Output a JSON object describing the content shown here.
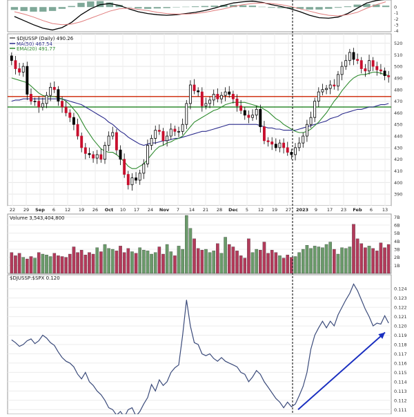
{
  "chart_data": [
    {
      "type": "line",
      "panel": "top-indicator",
      "ylim": [
        -4.2,
        1.2
      ],
      "y_ticks": [
        "0",
        "-1",
        "-2",
        "-3",
        "-4"
      ],
      "series": [
        {
          "color": "#000000",
          "y": [
            -1.6,
            -2.3,
            -3.0,
            -3.6,
            -3.9,
            -3.5,
            -2.6,
            -1.3,
            -0.3,
            0.4,
            0.6,
            0.3,
            -0.3,
            -0.8,
            -1.1,
            -1.3,
            -1.4,
            -1.3,
            -1.1,
            -0.9,
            -0.6,
            -0.2,
            0.3,
            0.7,
            0.9,
            1.0,
            0.8,
            0.4,
            0.1,
            -0.3,
            -0.8,
            -1.4,
            -1.8,
            -1.9,
            -1.7,
            -1.1,
            -0.2,
            0.7,
            1.1,
            1.3
          ]
        },
        {
          "color": "#e07b7b",
          "y": [
            -0.8,
            -1.2,
            -1.7,
            -2.3,
            -2.8,
            -3.0,
            -2.9,
            -2.5,
            -1.9,
            -1.3,
            -0.7,
            -0.3,
            -0.2,
            -0.4,
            -0.6,
            -0.9,
            -1.1,
            -1.2,
            -1.2,
            -1.1,
            -0.9,
            -0.6,
            -0.3,
            0.1,
            0.4,
            0.6,
            0.7,
            0.6,
            0.4,
            0.1,
            -0.3,
            -0.7,
            -1.1,
            -1.4,
            -1.5,
            -1.3,
            -0.9,
            -0.2,
            0.4,
            0.9
          ]
        }
      ]
    },
    {
      "type": "candlestick",
      "panel": "price",
      "legend": [
        "$DJUSSP (Daily) 490.26",
        "MA(50) 467.54",
        "EMA(20) 491.77"
      ],
      "ylim": [
        380,
        528
      ],
      "y_ticks": [
        "520",
        "510",
        "500",
        "490",
        "480",
        "470",
        "460",
        "450",
        "440",
        "430",
        "420",
        "410",
        "400",
        "390"
      ],
      "x_ticks": [
        "22",
        "29",
        "Sep",
        "6",
        "12",
        "19",
        "26",
        "Oct",
        "10",
        "17",
        "24",
        "Nov",
        "7",
        "14",
        "21",
        "28",
        "Dec",
        "5",
        "12",
        "19",
        "27",
        "2023",
        "9",
        "17",
        "23",
        "Feb",
        "6",
        "13"
      ],
      "hlines": [
        {
          "y": 474,
          "color": "#cc2200"
        },
        {
          "y": 465,
          "color": "#2e8b2e"
        }
      ],
      "close": [
        505,
        498,
        495,
        500,
        476,
        470,
        470,
        465,
        468,
        475,
        482,
        480,
        470,
        465,
        460,
        456,
        450,
        440,
        430,
        425,
        424,
        421,
        424,
        420,
        432,
        440,
        443,
        428,
        420,
        407,
        398,
        404,
        402,
        408,
        416,
        432,
        438,
        445,
        444,
        436,
        440,
        446,
        444,
        444,
        450,
        468,
        484,
        479,
        478,
        466,
        468,
        471,
        476,
        472,
        475,
        478,
        476,
        472,
        466,
        462,
        458,
        456,
        458,
        463,
        448,
        436,
        435,
        433,
        430,
        434,
        430,
        426,
        424,
        430,
        434,
        440,
        450,
        456,
        470,
        478,
        480,
        481,
        484,
        483,
        493,
        500,
        505,
        512,
        506,
        505,
        498,
        496,
        505,
        500,
        497,
        496,
        492,
        491
      ],
      "ma50": [
        470,
        471,
        471,
        472,
        472,
        472,
        472,
        472,
        472,
        472,
        472,
        472,
        472,
        472,
        471,
        470,
        469,
        468,
        467,
        465,
        463,
        461,
        459,
        457,
        455,
        452,
        450,
        447,
        444,
        442,
        439,
        437,
        435,
        433,
        432,
        433,
        434,
        434,
        435,
        436,
        436,
        437,
        438,
        438,
        439,
        440,
        441,
        442,
        443,
        444,
        444,
        445,
        446,
        447,
        448,
        449,
        450,
        450,
        450,
        450,
        450,
        450,
        450,
        450,
        449,
        448,
        447,
        447,
        446,
        446,
        445,
        445,
        445,
        445,
        446,
        447,
        448,
        449,
        450,
        451,
        452,
        453,
        455,
        456,
        457,
        459,
        460,
        461,
        462,
        463,
        463,
        464,
        465,
        465,
        466,
        467,
        467,
        468
      ],
      "ema20": [
        490,
        489,
        488,
        487,
        486,
        483,
        480,
        477,
        475,
        474,
        474,
        474,
        473,
        472,
        470,
        467,
        463,
        459,
        453,
        447,
        442,
        437,
        433,
        429,
        427,
        426,
        426,
        424,
        421,
        418,
        414,
        412,
        412,
        414,
        416,
        420,
        424,
        428,
        431,
        432,
        434,
        435,
        437,
        438,
        440,
        444,
        448,
        452,
        454,
        456,
        458,
        460,
        462,
        463,
        465,
        467,
        468,
        469,
        469,
        469,
        469,
        468,
        467,
        466,
        465,
        463,
        461,
        458,
        455,
        453,
        450,
        448,
        446,
        444,
        443,
        443,
        444,
        446,
        449,
        452,
        456,
        460,
        465,
        470,
        474,
        479,
        483,
        487,
        490,
        492,
        493,
        493,
        494,
        495,
        495,
        494,
        493,
        492
      ],
      "series": [
        {
          "name": "$DJUSSP (Daily) 490.26",
          "color": "#000000"
        },
        {
          "name": "MA(50) 467.54",
          "color": "#2b2b8c"
        },
        {
          "name": "EMA(20) 491.77",
          "color": "#2e8b2e"
        }
      ]
    },
    {
      "type": "bar",
      "panel": "volume",
      "legend": [
        "Volume 3,543,404,800"
      ],
      "ylim": [
        0,
        7.2
      ],
      "y_ticks": [
        "7B",
        "6B",
        "5B",
        "4B",
        "3B",
        "2B",
        "1B"
      ],
      "values": [
        2.6,
        2.2,
        2.5,
        2.0,
        1.8,
        2.1,
        1.9,
        2.6,
        2.4,
        2.3,
        2.1,
        2.5,
        2.2,
        2.1,
        2.0,
        2.4,
        3.3,
        2.6,
        2.9,
        2.3,
        2.6,
        2.4,
        3.2,
        2.7,
        3.6,
        3.1,
        3.0,
        2.8,
        3.4,
        2.6,
        3.1,
        2.7,
        2.5,
        3.2,
        2.9,
        2.8,
        2.4,
        2.6,
        3.3,
        2.4,
        3.6,
        2.7,
        2.2,
        3.4,
        3.0,
        7.2,
        5.6,
        4.3,
        3.1,
        2.9,
        3.0,
        2.6,
        2.8,
        3.7,
        2.5,
        4.5,
        3.6,
        3.3,
        2.8,
        2.2,
        1.9,
        4.3,
        2.6,
        3.0,
        2.9,
        3.9,
        2.5,
        2.9,
        2.6,
        2.2,
        1.9,
        2.3,
        2.0,
        2.1,
        2.6,
        3.0,
        3.5,
        3.1,
        3.4,
        3.3,
        3.2,
        3.6,
        3.9,
        3.0,
        2.4,
        3.2,
        3.1,
        3.3,
        6.1,
        4.3,
        3.7,
        3.2,
        3.4,
        3.1,
        2.8,
        3.8,
        3.2,
        3.6
      ]
    },
    {
      "type": "line",
      "panel": "ratio",
      "legend": [
        "$DJUSSP:$SPX 0.120"
      ],
      "ylim": [
        0.1105,
        0.1255
      ],
      "y_ticks": [
        "0.124",
        "0.123",
        "0.122",
        "0.121",
        "0.120",
        "0.119",
        "0.118",
        "0.117",
        "0.116",
        "0.115",
        "0.114",
        "0.113",
        "0.112",
        "0.111"
      ],
      "series": [
        {
          "name": "$DJUSSP:$SPX 0.120",
          "color": "#3a4a7a",
          "values": [
            0.1185,
            0.1182,
            0.1178,
            0.118,
            0.1184,
            0.1186,
            0.1181,
            0.1184,
            0.119,
            0.1187,
            0.1182,
            0.1179,
            0.1172,
            0.1166,
            0.1162,
            0.116,
            0.1156,
            0.1148,
            0.1143,
            0.115,
            0.114,
            0.1136,
            0.113,
            0.1126,
            0.112,
            0.1112,
            0.111,
            0.1104,
            0.1108,
            0.1102,
            0.111,
            0.1112,
            0.1103,
            0.1108,
            0.1116,
            0.1123,
            0.1137,
            0.113,
            0.1142,
            0.1136,
            0.114,
            0.115,
            0.1155,
            0.1158,
            0.119,
            0.1228,
            0.12,
            0.1182,
            0.118,
            0.117,
            0.1168,
            0.117,
            0.1165,
            0.1162,
            0.1166,
            0.1162,
            0.116,
            0.1158,
            0.1156,
            0.115,
            0.1148,
            0.114,
            0.1145,
            0.1152,
            0.1148,
            0.114,
            0.1134,
            0.1128,
            0.1122,
            0.1118,
            0.1112,
            0.1118,
            0.1113,
            0.1116,
            0.1125,
            0.1135,
            0.115,
            0.1175,
            0.119,
            0.1198,
            0.1205,
            0.1198,
            0.1205,
            0.12,
            0.1212,
            0.122,
            0.1228,
            0.1235,
            0.1245,
            0.1238,
            0.1228,
            0.1218,
            0.121,
            0.12,
            0.1203,
            0.1202,
            0.1211,
            0.1203
          ]
        }
      ],
      "annotation": {
        "type": "arrow",
        "color": "#1a2fc0",
        "from": [
          0.111,
          0
        ],
        "to": [
          0.1193,
          0
        ]
      }
    }
  ]
}
